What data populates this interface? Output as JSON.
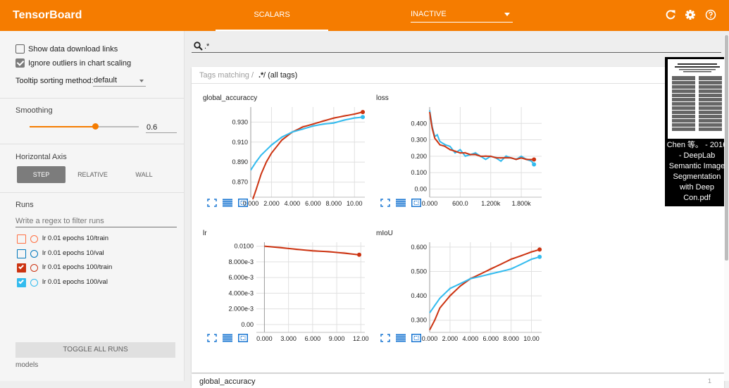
{
  "app": {
    "title": "TensorBoard"
  },
  "header": {
    "tab_label": "SCALARS",
    "mode_value": "INACTIVE",
    "icons": [
      "refresh-icon",
      "settings-icon",
      "help-icon"
    ]
  },
  "sidebar": {
    "show_download_label": "Show data download links",
    "show_download_checked": false,
    "ignore_outliers_label": "Ignore outliers in chart scaling",
    "ignore_outliers_checked": true,
    "tooltip_label": "Tooltip sorting method:",
    "tooltip_value": "default",
    "smoothing_title": "Smoothing",
    "smoothing_value": "0.6",
    "smoothing_level": 0.6,
    "axis_title": "Horizontal Axis",
    "axis_buttons": [
      "STEP",
      "RELATIVE",
      "WALL"
    ],
    "axis_selected": "STEP",
    "runs_title": "Runs",
    "runs_placeholder": "Write a regex to filter runs",
    "runs": [
      {
        "label": "lr 0.01 epochs 10/train",
        "color": "#ff7043",
        "checked": false
      },
      {
        "label": "lr 0.01 epochs 10/val",
        "color": "#0077bb",
        "checked": false
      },
      {
        "label": "lr 0.01 epochs 100/train",
        "color": "#cc3311",
        "checked": true
      },
      {
        "label": "lr 0.01 epochs 100/val",
        "color": "#33bbee",
        "checked": true
      }
    ],
    "toggle_all_label": "TOGGLE ALL RUNS",
    "footer_label": "models"
  },
  "main": {
    "search_value": ".*",
    "tags_prefix": "Tags matching /",
    "tags_regex": ".*",
    "tags_suffix": "/ (all tags)",
    "next_card_title": "global_accuracy",
    "next_card_count": "1"
  },
  "pdf_popup": {
    "caption": "Chen 等。 - 2016\n- DeepLab\nSemantic Image\nSegmentation\nwith Deep\nCon.pdf"
  },
  "colors": {
    "train": "#cc3311",
    "val": "#33bbee",
    "accent": "#f57c00"
  },
  "chart_data": [
    {
      "type": "line",
      "title": "global_accuraccy",
      "xlim": [
        0,
        11
      ],
      "ylim": [
        0.855,
        0.945
      ],
      "x_ticks": [
        0,
        2,
        4,
        6,
        8,
        10
      ],
      "x_tick_labels": [
        "0.000",
        "2.000",
        "4.000",
        "6.000",
        "8.000",
        "10.00"
      ],
      "y_ticks": [
        0.87,
        0.89,
        0.91,
        0.93
      ],
      "y_tick_labels": [
        "0.870",
        "0.890",
        "0.910",
        "0.930"
      ],
      "series": [
        {
          "color": "#cc3311",
          "x": [
            0.2,
            0.5,
            1,
            1.5,
            2,
            3,
            4,
            5,
            6,
            7,
            8,
            9,
            10,
            10.8
          ],
          "y": [
            0.853,
            0.862,
            0.878,
            0.89,
            0.899,
            0.912,
            0.92,
            0.925,
            0.928,
            0.931,
            0.934,
            0.936,
            0.938,
            0.94
          ]
        },
        {
          "color": "#33bbee",
          "x": [
            0,
            0.5,
            1,
            2,
            3,
            4,
            5,
            6,
            7,
            8,
            9,
            10,
            10.8
          ],
          "y": [
            0.882,
            0.89,
            0.897,
            0.907,
            0.915,
            0.92,
            0.923,
            0.926,
            0.928,
            0.929,
            0.932,
            0.934,
            0.935
          ]
        }
      ]
    },
    {
      "type": "line",
      "title": "loss",
      "xlim": [
        0,
        2200
      ],
      "ylim": [
        -0.05,
        0.5
      ],
      "x_ticks": [
        0,
        600,
        1200,
        1800
      ],
      "x_tick_labels": [
        "0.000",
        "600.0",
        "1.200k",
        "1.800k"
      ],
      "y_ticks": [
        0,
        0.1,
        0.2,
        0.3,
        0.4
      ],
      "y_tick_labels": [
        "0.00",
        "0.100",
        "0.200",
        "0.300",
        "0.400"
      ],
      "series": [
        {
          "color": "#33bbee",
          "x": [
            0,
            50,
            100,
            150,
            200,
            300,
            400,
            500,
            600,
            700,
            800,
            900,
            1000,
            1100,
            1200,
            1300,
            1400,
            1500,
            1600,
            1700,
            1800,
            1900,
            2000,
            2050
          ],
          "y": [
            0.48,
            0.38,
            0.32,
            0.33,
            0.29,
            0.27,
            0.26,
            0.22,
            0.24,
            0.2,
            0.21,
            0.22,
            0.2,
            0.18,
            0.2,
            0.19,
            0.17,
            0.2,
            0.19,
            0.18,
            0.2,
            0.18,
            0.17,
            0.15
          ]
        },
        {
          "color": "#cc3311",
          "x": [
            0,
            50,
            100,
            150,
            200,
            300,
            400,
            500,
            600,
            700,
            800,
            900,
            1000,
            1100,
            1200,
            1300,
            1400,
            1500,
            1600,
            1700,
            1800,
            1900,
            2000,
            2050
          ],
          "y": [
            0.47,
            0.37,
            0.31,
            0.29,
            0.27,
            0.26,
            0.24,
            0.23,
            0.22,
            0.22,
            0.21,
            0.21,
            0.2,
            0.2,
            0.2,
            0.19,
            0.19,
            0.19,
            0.19,
            0.18,
            0.19,
            0.18,
            0.18,
            0.18
          ]
        }
      ]
    },
    {
      "type": "line",
      "title": "lr",
      "xlim": [
        -1,
        12.5
      ],
      "ylim": [
        -0.001,
        0.0105
      ],
      "x_ticks": [
        0,
        3,
        6,
        9,
        12
      ],
      "x_tick_labels": [
        "0.000",
        "3.000",
        "6.000",
        "9.000",
        "12.00"
      ],
      "y_ticks": [
        0,
        0.002,
        0.004,
        0.006,
        0.008,
        0.01
      ],
      "y_tick_labels": [
        "0.00",
        "2.000e-3",
        "4.000e-3",
        "6.000e-3",
        "8.000e-3",
        "0.0100"
      ],
      "series": [
        {
          "color": "#cc3311",
          "x": [
            0,
            2,
            4,
            6,
            8,
            10,
            11.8
          ],
          "y": [
            0.01,
            0.0098,
            0.0096,
            0.0094,
            0.0093,
            0.0091,
            0.0089
          ]
        }
      ]
    },
    {
      "type": "line",
      "title": "mIoU",
      "xlim": [
        0,
        11
      ],
      "ylim": [
        0.25,
        0.62
      ],
      "x_ticks": [
        0,
        2,
        4,
        6,
        8,
        10
      ],
      "x_tick_labels": [
        "0.000",
        "2.000",
        "4.000",
        "6.000",
        "8.000",
        "10.00"
      ],
      "y_ticks": [
        0.3,
        0.4,
        0.5,
        0.6
      ],
      "y_tick_labels": [
        "0.300",
        "0.400",
        "0.500",
        "0.600"
      ],
      "series": [
        {
          "color": "#cc3311",
          "x": [
            0,
            0.5,
            1,
            2,
            3,
            4,
            5,
            6,
            7,
            8,
            9,
            10,
            10.8
          ],
          "y": [
            0.26,
            0.3,
            0.35,
            0.4,
            0.44,
            0.47,
            0.49,
            0.51,
            0.53,
            0.55,
            0.565,
            0.58,
            0.59
          ]
        },
        {
          "color": "#33bbee",
          "x": [
            0,
            0.5,
            1,
            2,
            3,
            4,
            5,
            6,
            7,
            8,
            9,
            10,
            10.8
          ],
          "y": [
            0.33,
            0.36,
            0.39,
            0.43,
            0.45,
            0.47,
            0.48,
            0.49,
            0.5,
            0.51,
            0.53,
            0.55,
            0.56
          ]
        }
      ]
    }
  ]
}
